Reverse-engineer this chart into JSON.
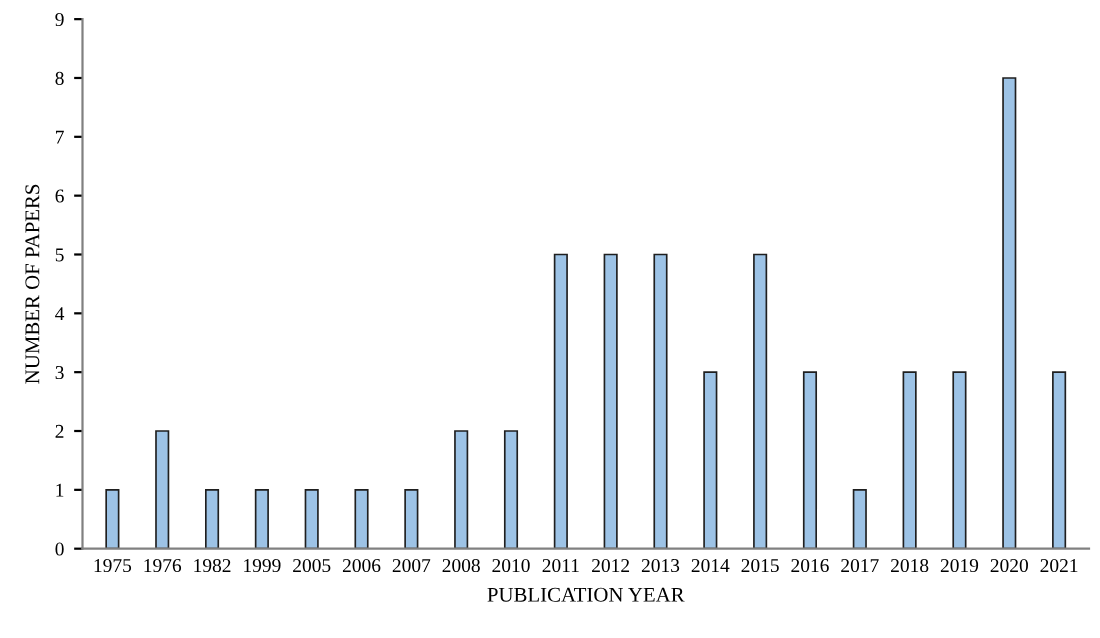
{
  "chart_data": {
    "type": "bar",
    "xlabel": "PUBLICATION YEAR",
    "ylabel": "NUMBER OF PAPERS",
    "categories": [
      "1975",
      "1976",
      "1982",
      "1999",
      "2005",
      "2006",
      "2007",
      "2008",
      "2010",
      "2011",
      "2012",
      "2013",
      "2014",
      "2015",
      "2016",
      "2017",
      "2018",
      "2019",
      "2020",
      "2021"
    ],
    "values": [
      1,
      2,
      1,
      1,
      1,
      1,
      1,
      2,
      2,
      5,
      5,
      5,
      3,
      5,
      3,
      1,
      3,
      3,
      8,
      3
    ],
    "color": "#9dc3e6",
    "ylim": [
      0,
      9
    ],
    "yticks": [
      0,
      1,
      2,
      3,
      4,
      5,
      6,
      7,
      8,
      9
    ],
    "grid": false,
    "legend": false
  }
}
